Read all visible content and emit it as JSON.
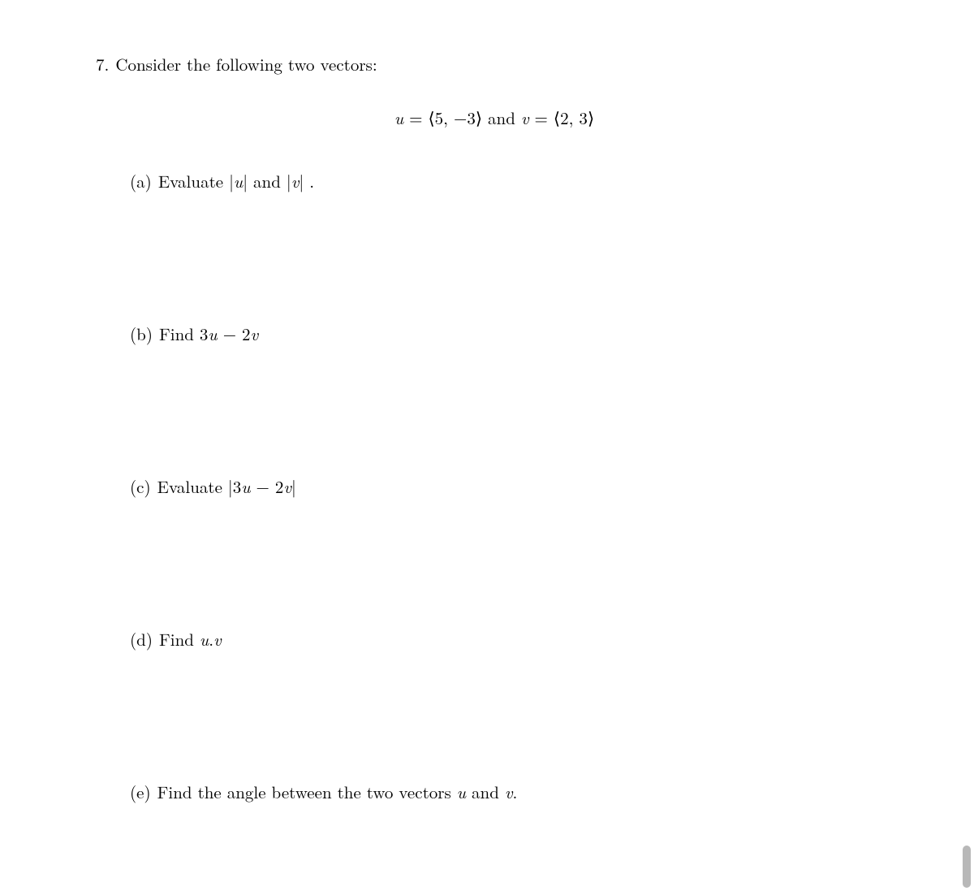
{
  "problem": {
    "number": "7.",
    "intro": "Consider the following two vectors:",
    "equation": {
      "u_var": "u",
      "eq1": " = ",
      "u_open": "⟨",
      "u_vals": "5, −3",
      "u_close": "⟩",
      "and_text": "  and ",
      "v_var": "v",
      "eq2": " = ",
      "v_open": "⟨",
      "v_vals": "2, 3",
      "v_close": "⟩"
    },
    "parts": {
      "a": {
        "label": "(a)",
        "text_pre": "Evaluate ",
        "expr1_open": "|",
        "expr1_var": "u",
        "expr1_close": "|",
        "text_mid": " and ",
        "expr2_open": "|",
        "expr2_var": "v",
        "expr2_close": "|",
        "text_post": " ."
      },
      "b": {
        "label": "(b)",
        "text_pre": "Find ",
        "coef1": "3",
        "var1": "u",
        "op": " − ",
        "coef2": "2",
        "var2": "v"
      },
      "c": {
        "label": "(c)",
        "text_pre": "Evaluate ",
        "open": "|",
        "coef1": "3",
        "var1": "u",
        "op": " − ",
        "coef2": "2",
        "var2": "v",
        "close": "|"
      },
      "d": {
        "label": "(d)",
        "text_pre": "Find ",
        "var1": "u",
        "dot": ".",
        "var2": "v"
      },
      "e": {
        "label": "(e)",
        "text_pre": "Find the angle between the two vectors ",
        "var1": "u",
        "text_mid": " and ",
        "var2": "v",
        "text_post": "."
      }
    }
  },
  "styling": {
    "background_color": "#ffffff",
    "text_color": "#000000",
    "font_size_pt": 16,
    "font_family": "Computer Modern / Latin Modern serif",
    "scrollbar_color": "#b8b8b8"
  }
}
